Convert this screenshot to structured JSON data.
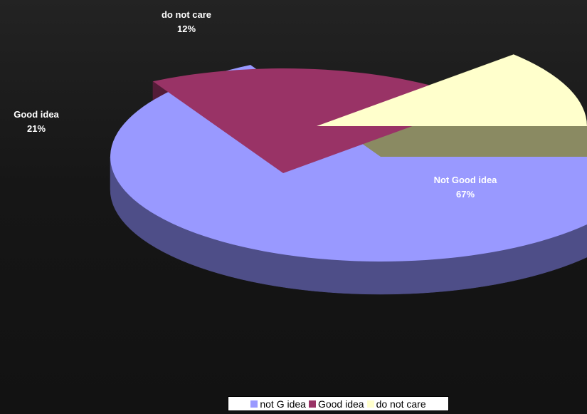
{
  "chart_data": {
    "type": "pie",
    "style": "3d-exploded",
    "slices": [
      {
        "key": "not_good",
        "label": "Not Good idea",
        "percent_label": "67%",
        "value": 67,
        "color": "#9999ff",
        "side_color": "#4e4e88"
      },
      {
        "key": "good",
        "label": "Good idea",
        "percent_label": "21%",
        "value": 21,
        "color": "#993366",
        "side_color": "#541c38"
      },
      {
        "key": "do_not_care",
        "label": "do not care",
        "percent_label": "12%",
        "value": 12,
        "color": "#ffffcc",
        "side_color": "#8a8a62"
      }
    ],
    "legend": {
      "position": "bottom-center",
      "items": [
        {
          "label": "not G idea",
          "color": "#9999ff"
        },
        {
          "label": "Good idea",
          "color": "#993366"
        },
        {
          "label": "do not care",
          "color": "#ffffcc"
        }
      ]
    }
  }
}
